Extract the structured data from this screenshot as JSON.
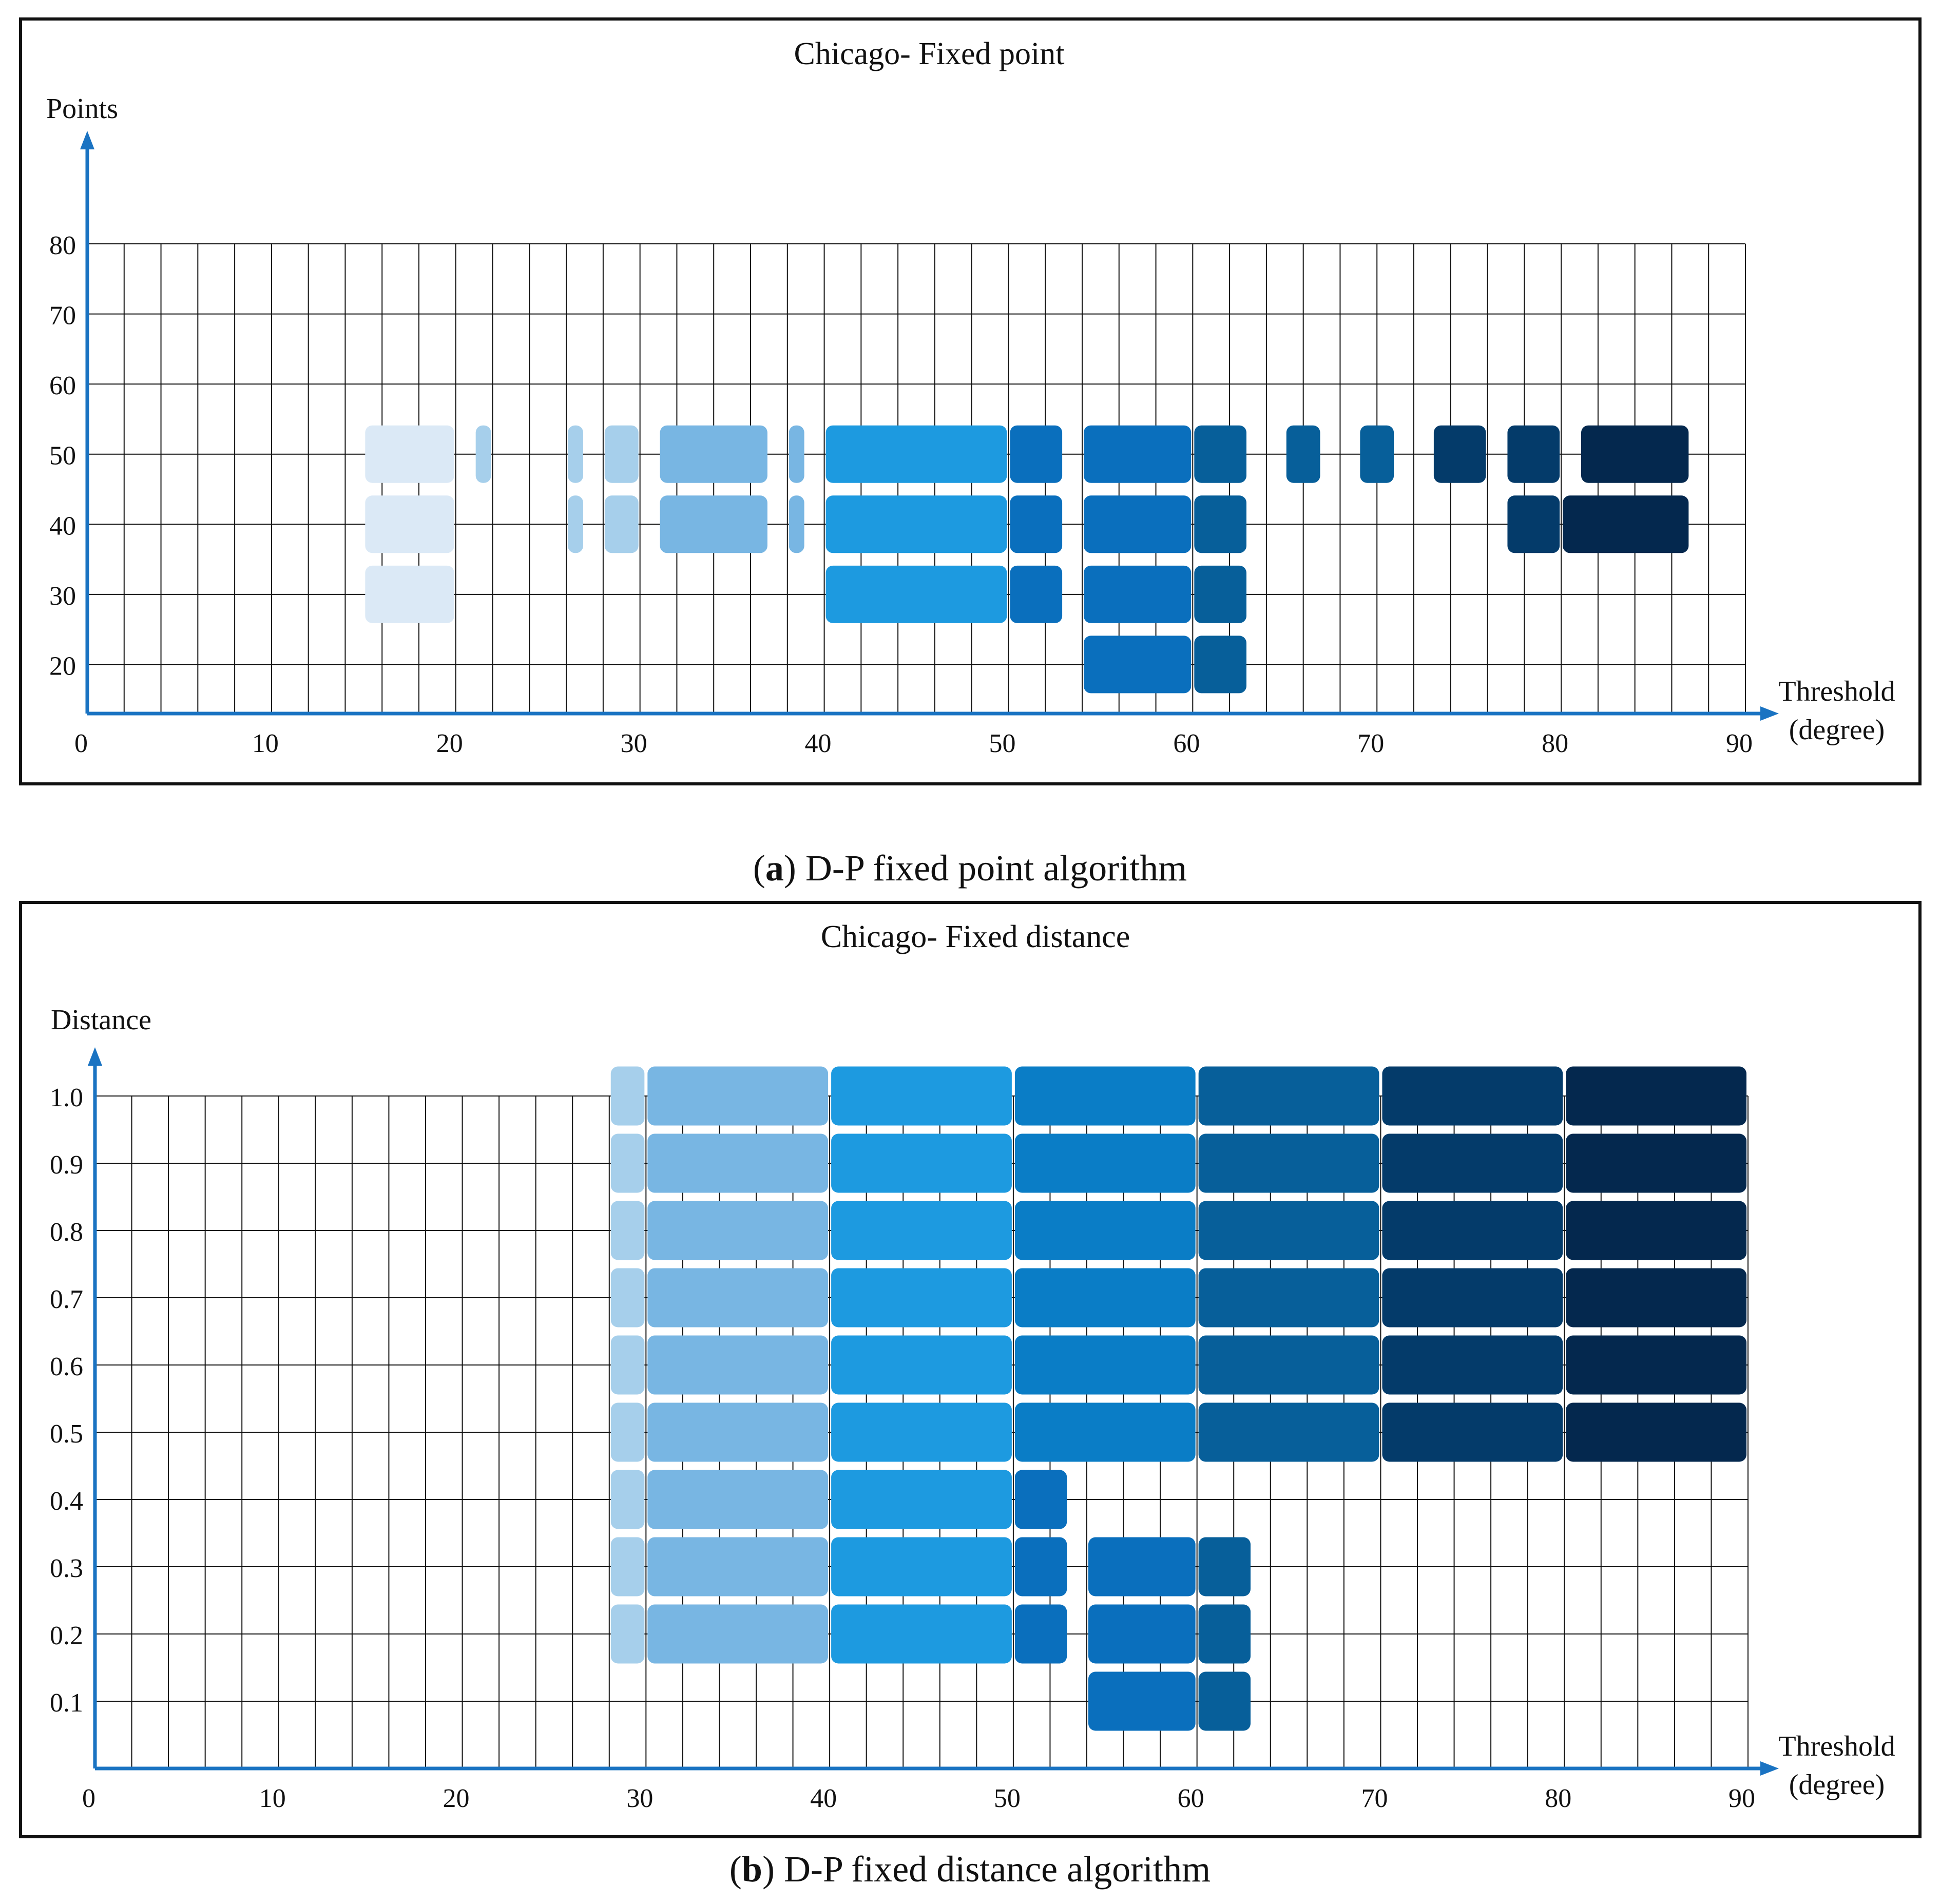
{
  "palette": {
    "axis": "#1a73c2",
    "grid": "#111111",
    "frame": "#111111",
    "bands": [
      "#dbe9f6",
      "#a6cfeb",
      "#78b6e3",
      "#1d9ae0",
      "#0a7dc6",
      "#0a6fbd",
      "#075f9a",
      "#043b6a",
      "#04284e"
    ]
  },
  "captions": [
    {
      "letter": "a",
      "text": "D-P fixed point algorithm"
    },
    {
      "letter": "b",
      "text": "D-P fixed distance algorithm"
    }
  ],
  "chart_data": [
    {
      "type": "heatmap",
      "title": "Chicago- Fixed point",
      "ylabel": "Points",
      "xlabel": "Threshold (degree)",
      "xlabel_lines": [
        "Threshold",
        "(degree)"
      ],
      "xlim": [
        0,
        90
      ],
      "x_ticks": [
        "0",
        "10",
        "20",
        "30",
        "40",
        "50",
        "60",
        "70",
        "80",
        "90"
      ],
      "x_tick_values": [
        0,
        10,
        20,
        30,
        40,
        50,
        60,
        70,
        80,
        90
      ],
      "y_ticks": [
        "20",
        "30",
        "40",
        "50",
        "60",
        "70",
        "80"
      ],
      "y_tick_values": [
        20,
        30,
        40,
        50,
        60,
        70,
        80
      ],
      "ylim": [
        13,
        80
      ],
      "grid": true,
      "cells": [
        {
          "x0": 15,
          "x1": 20,
          "y": 50,
          "shade": 0
        },
        {
          "x0": 15,
          "x1": 20,
          "y": 40,
          "shade": 0
        },
        {
          "x0": 15,
          "x1": 20,
          "y": 30,
          "shade": 0
        },
        {
          "x0": 21,
          "x1": 22,
          "y": 50,
          "shade": 1
        },
        {
          "x0": 26,
          "x1": 27,
          "y": 50,
          "shade": 1
        },
        {
          "x0": 26,
          "x1": 27,
          "y": 40,
          "shade": 1
        },
        {
          "x0": 28,
          "x1": 30,
          "y": 50,
          "shade": 1
        },
        {
          "x0": 28,
          "x1": 30,
          "y": 40,
          "shade": 1
        },
        {
          "x0": 31,
          "x1": 37,
          "y": 50,
          "shade": 2
        },
        {
          "x0": 31,
          "x1": 37,
          "y": 40,
          "shade": 2
        },
        {
          "x0": 38,
          "x1": 39,
          "y": 50,
          "shade": 2
        },
        {
          "x0": 38,
          "x1": 39,
          "y": 40,
          "shade": 2
        },
        {
          "x0": 40,
          "x1": 50,
          "y": 50,
          "shade": 3
        },
        {
          "x0": 40,
          "x1": 50,
          "y": 40,
          "shade": 3
        },
        {
          "x0": 40,
          "x1": 50,
          "y": 30,
          "shade": 3
        },
        {
          "x0": 50,
          "x1": 53,
          "y": 50,
          "shade": 5
        },
        {
          "x0": 50,
          "x1": 53,
          "y": 40,
          "shade": 5
        },
        {
          "x0": 50,
          "x1": 53,
          "y": 30,
          "shade": 5
        },
        {
          "x0": 54,
          "x1": 60,
          "y": 50,
          "shade": 5
        },
        {
          "x0": 54,
          "x1": 60,
          "y": 40,
          "shade": 5
        },
        {
          "x0": 54,
          "x1": 60,
          "y": 30,
          "shade": 5
        },
        {
          "x0": 54,
          "x1": 60,
          "y": 20,
          "shade": 5
        },
        {
          "x0": 60,
          "x1": 63,
          "y": 50,
          "shade": 6
        },
        {
          "x0": 60,
          "x1": 63,
          "y": 40,
          "shade": 6
        },
        {
          "x0": 60,
          "x1": 63,
          "y": 30,
          "shade": 6
        },
        {
          "x0": 60,
          "x1": 63,
          "y": 20,
          "shade": 6
        },
        {
          "x0": 65,
          "x1": 67,
          "y": 50,
          "shade": 6
        },
        {
          "x0": 69,
          "x1": 71,
          "y": 50,
          "shade": 6
        },
        {
          "x0": 73,
          "x1": 76,
          "y": 50,
          "shade": 7
        },
        {
          "x0": 77,
          "x1": 80,
          "y": 50,
          "shade": 7
        },
        {
          "x0": 77,
          "x1": 80,
          "y": 40,
          "shade": 7
        },
        {
          "x0": 81,
          "x1": 87,
          "y": 50,
          "shade": 8
        },
        {
          "x0": 80,
          "x1": 87,
          "y": 40,
          "shade": 8
        }
      ]
    },
    {
      "type": "heatmap",
      "title": "Chicago- Fixed distance",
      "ylabel": "Distance",
      "xlabel": "Threshold (degree)",
      "xlabel_lines": [
        "Threshold",
        "(degree)"
      ],
      "xlim": [
        0,
        90
      ],
      "x_ticks": [
        "0",
        "10",
        "20",
        "30",
        "40",
        "50",
        "60",
        "70",
        "80",
        "90"
      ],
      "x_tick_values": [
        0,
        10,
        20,
        30,
        40,
        50,
        60,
        70,
        80,
        90
      ],
      "y_ticks": [
        "0.1",
        "0.2",
        "0.3",
        "0.4",
        "0.5",
        "0.6",
        "0.7",
        "0.8",
        "0.9",
        "1.0"
      ],
      "y_tick_values": [
        0.1,
        0.2,
        0.3,
        0.4,
        0.5,
        0.6,
        0.7,
        0.8,
        0.9,
        1.0
      ],
      "ylim": [
        0.0,
        1.0
      ],
      "grid": true,
      "cells": [
        {
          "x0": 28,
          "x1": 30,
          "y": 1.0,
          "shade": 1
        },
        {
          "x0": 28,
          "x1": 30,
          "y": 0.9,
          "shade": 1
        },
        {
          "x0": 28,
          "x1": 30,
          "y": 0.8,
          "shade": 1
        },
        {
          "x0": 28,
          "x1": 30,
          "y": 0.7,
          "shade": 1
        },
        {
          "x0": 28,
          "x1": 30,
          "y": 0.6,
          "shade": 1
        },
        {
          "x0": 28,
          "x1": 30,
          "y": 0.5,
          "shade": 1
        },
        {
          "x0": 28,
          "x1": 30,
          "y": 0.4,
          "shade": 1
        },
        {
          "x0": 28,
          "x1": 30,
          "y": 0.3,
          "shade": 1
        },
        {
          "x0": 28,
          "x1": 30,
          "y": 0.2,
          "shade": 1
        },
        {
          "x0": 30,
          "x1": 40,
          "y": 1.0,
          "shade": 2
        },
        {
          "x0": 30,
          "x1": 40,
          "y": 0.9,
          "shade": 2
        },
        {
          "x0": 30,
          "x1": 40,
          "y": 0.8,
          "shade": 2
        },
        {
          "x0": 30,
          "x1": 40,
          "y": 0.7,
          "shade": 2
        },
        {
          "x0": 30,
          "x1": 40,
          "y": 0.6,
          "shade": 2
        },
        {
          "x0": 30,
          "x1": 40,
          "y": 0.5,
          "shade": 2
        },
        {
          "x0": 30,
          "x1": 40,
          "y": 0.4,
          "shade": 2
        },
        {
          "x0": 30,
          "x1": 40,
          "y": 0.3,
          "shade": 2
        },
        {
          "x0": 30,
          "x1": 40,
          "y": 0.2,
          "shade": 2
        },
        {
          "x0": 40,
          "x1": 50,
          "y": 1.0,
          "shade": 3
        },
        {
          "x0": 40,
          "x1": 50,
          "y": 0.9,
          "shade": 3
        },
        {
          "x0": 40,
          "x1": 50,
          "y": 0.8,
          "shade": 3
        },
        {
          "x0": 40,
          "x1": 50,
          "y": 0.7,
          "shade": 3
        },
        {
          "x0": 40,
          "x1": 50,
          "y": 0.6,
          "shade": 3
        },
        {
          "x0": 40,
          "x1": 50,
          "y": 0.5,
          "shade": 3
        },
        {
          "x0": 40,
          "x1": 50,
          "y": 0.4,
          "shade": 3
        },
        {
          "x0": 40,
          "x1": 50,
          "y": 0.3,
          "shade": 3
        },
        {
          "x0": 40,
          "x1": 50,
          "y": 0.2,
          "shade": 3
        },
        {
          "x0": 50,
          "x1": 60,
          "y": 1.0,
          "shade": 4
        },
        {
          "x0": 50,
          "x1": 60,
          "y": 0.9,
          "shade": 4
        },
        {
          "x0": 50,
          "x1": 60,
          "y": 0.8,
          "shade": 4
        },
        {
          "x0": 50,
          "x1": 60,
          "y": 0.7,
          "shade": 4
        },
        {
          "x0": 50,
          "x1": 60,
          "y": 0.6,
          "shade": 4
        },
        {
          "x0": 50,
          "x1": 60,
          "y": 0.5,
          "shade": 4
        },
        {
          "x0": 50,
          "x1": 53,
          "y": 0.4,
          "shade": 5
        },
        {
          "x0": 50,
          "x1": 53,
          "y": 0.3,
          "shade": 5
        },
        {
          "x0": 50,
          "x1": 53,
          "y": 0.2,
          "shade": 5
        },
        {
          "x0": 54,
          "x1": 60,
          "y": 0.3,
          "shade": 5
        },
        {
          "x0": 54,
          "x1": 60,
          "y": 0.2,
          "shade": 5
        },
        {
          "x0": 54,
          "x1": 60,
          "y": 0.1,
          "shade": 5
        },
        {
          "x0": 60,
          "x1": 63,
          "y": 0.3,
          "shade": 6
        },
        {
          "x0": 60,
          "x1": 63,
          "y": 0.2,
          "shade": 6
        },
        {
          "x0": 60,
          "x1": 63,
          "y": 0.1,
          "shade": 6
        },
        {
          "x0": 60,
          "x1": 70,
          "y": 1.0,
          "shade": 6
        },
        {
          "x0": 60,
          "x1": 70,
          "y": 0.9,
          "shade": 6
        },
        {
          "x0": 60,
          "x1": 70,
          "y": 0.8,
          "shade": 6
        },
        {
          "x0": 60,
          "x1": 70,
          "y": 0.7,
          "shade": 6
        },
        {
          "x0": 60,
          "x1": 70,
          "y": 0.6,
          "shade": 6
        },
        {
          "x0": 60,
          "x1": 70,
          "y": 0.5,
          "shade": 6
        },
        {
          "x0": 70,
          "x1": 80,
          "y": 1.0,
          "shade": 7
        },
        {
          "x0": 70,
          "x1": 80,
          "y": 0.9,
          "shade": 7
        },
        {
          "x0": 70,
          "x1": 80,
          "y": 0.8,
          "shade": 7
        },
        {
          "x0": 70,
          "x1": 80,
          "y": 0.7,
          "shade": 7
        },
        {
          "x0": 70,
          "x1": 80,
          "y": 0.6,
          "shade": 7
        },
        {
          "x0": 70,
          "x1": 80,
          "y": 0.5,
          "shade": 7
        },
        {
          "x0": 80,
          "x1": 90,
          "y": 1.0,
          "shade": 8
        },
        {
          "x0": 80,
          "x1": 90,
          "y": 0.9,
          "shade": 8
        },
        {
          "x0": 80,
          "x1": 90,
          "y": 0.8,
          "shade": 8
        },
        {
          "x0": 80,
          "x1": 90,
          "y": 0.7,
          "shade": 8
        },
        {
          "x0": 80,
          "x1": 90,
          "y": 0.6,
          "shade": 8
        },
        {
          "x0": 80,
          "x1": 90,
          "y": 0.5,
          "shade": 8
        }
      ]
    }
  ]
}
